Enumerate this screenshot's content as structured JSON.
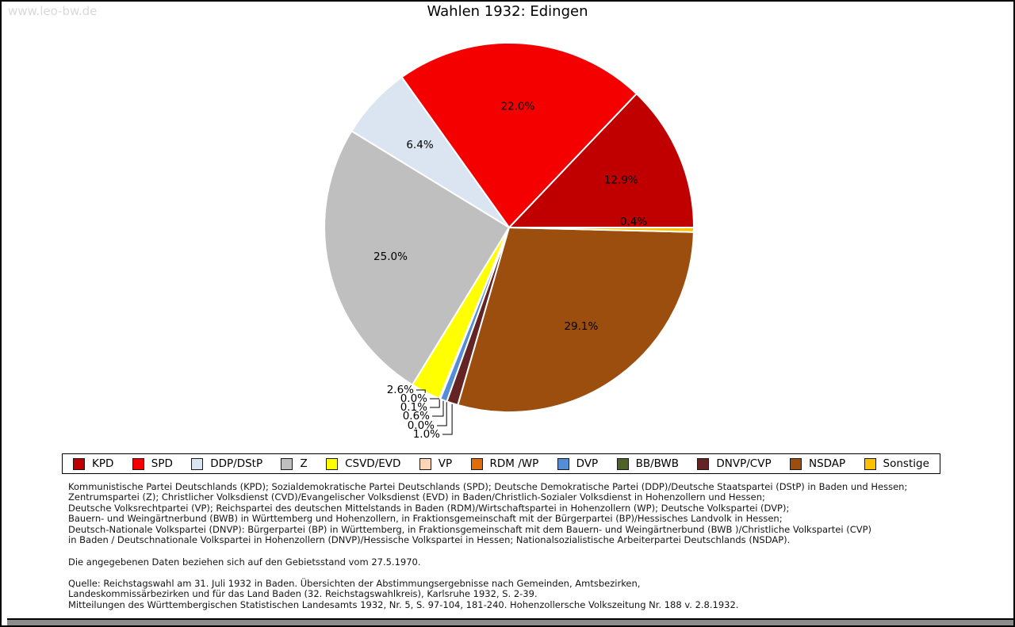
{
  "watermark": "www.leo-bw.de",
  "title": "Wahlen 1932: Edingen",
  "chart_data": {
    "type": "pie",
    "title": "Wahlen 1932: Edingen",
    "unit": "%",
    "start_angle_deg": 0,
    "direction": "counterclockwise",
    "legend_position": "bottom",
    "series": [
      {
        "label": "KPD",
        "value": 12.9,
        "color": "#c00000"
      },
      {
        "label": "SPD",
        "value": 22.0,
        "color": "#f40000"
      },
      {
        "label": "DDP/DStP",
        "value": 6.4,
        "color": "#dbe5f1"
      },
      {
        "label": "Z",
        "value": 25.0,
        "color": "#bfbfbf"
      },
      {
        "label": "CSVD/EVD",
        "value": 2.6,
        "color": "#ffff00"
      },
      {
        "label": "VP",
        "value": 0.0,
        "color": "#fbd5b5"
      },
      {
        "label": "RDM /WP",
        "value": 0.1,
        "color": "#e36c0a"
      },
      {
        "label": "DVP",
        "value": 0.6,
        "color": "#558ed5"
      },
      {
        "label": "BB/BWB",
        "value": 0.0,
        "color": "#4f6228"
      },
      {
        "label": "DNVP/CVP",
        "value": 1.0,
        "color": "#632423"
      },
      {
        "label": "NSDAP",
        "value": 29.1,
        "color": "#9c4e0e"
      },
      {
        "label": "Sonstige",
        "value": 0.4,
        "color": "#ffc000"
      }
    ]
  },
  "footnotes": {
    "party_definitions": [
      "Kommunistische Partei Deutschlands (KPD); Sozialdemokratische Partei Deutschlands (SPD); Deutsche Demokratische Partei (DDP)/Deutsche Staatspartei (DStP) in Baden und Hessen;",
      "Zentrumspartei (Z); Christlicher Volksdienst (CVD)/Evangelischer Volksdienst (EVD) in Baden/Christlich-Sozialer Volksdienst in Hohenzollern und Hessen;",
      "Deutsche Volksrechtpartei (VP); Reichspartei des deutschen Mittelstands in Baden (RDM)/Wirtschaftspartei in Hohenzollern (WP); Deutsche Volkspartei (DVP);",
      "Bauern- und Weingärtnerbund (BWB) in Württemberg und Hohenzollern, in Fraktionsgemeinschaft mit der Bürgerpartei (BP)/Hessisches Landvolk in Hessen;",
      "Deutsch-Nationale Volkspartei (DNVP): Bürgerpartei (BP) in Württemberg, in Fraktionsgemeinschaft mit dem Bauern- und Weingärtnerbund (BWB )/Christliche Volkspartei (CVP)",
      "in Baden / Deutschnationale Volkspartei in Hohenzollern (DNVP)/Hessische Volkspartei in Hessen; Nationalsozialistische Arbeiterpartei Deutschlands (NSDAP)."
    ],
    "territorial_note": "Die angegebenen Daten beziehen sich auf den Gebietsstand vom 27.5.1970.",
    "source_lines": [
      "Quelle: Reichstagswahl am 31. Juli 1932 in Baden. Übersichten der Abstimmungsergebnisse nach Gemeinden, Amtsbezirken,",
      "Landeskommissärbezirken und für das Land Baden (32. Reichstagswahlkreis), Karlsruhe 1932, S. 2-39.",
      "Mitteilungen des Württembergischen Statistischen Landesamts 1932, Nr. 5, S. 97-104, 181-240. Hohenzollersche Volkszeitung Nr. 188 v. 2.8.1932."
    ]
  }
}
